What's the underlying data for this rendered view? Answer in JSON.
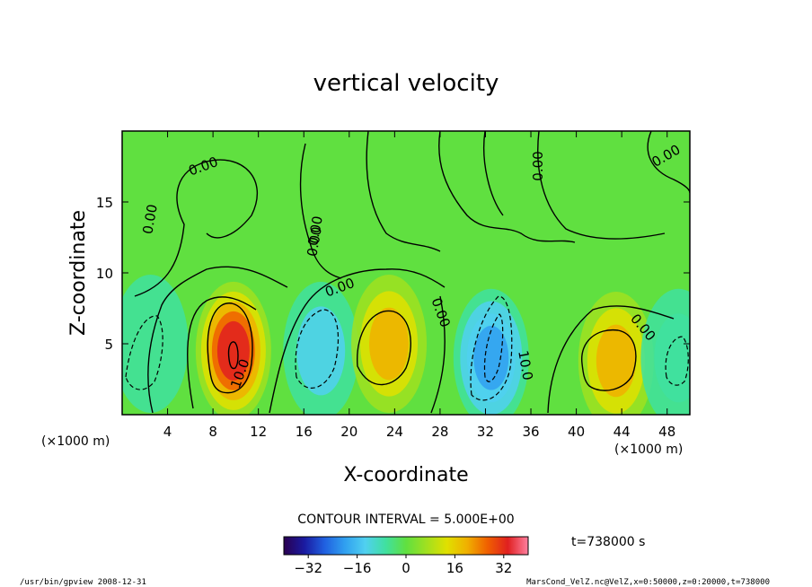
{
  "chart_data": {
    "type": "heatmap",
    "title": "vertical velocity",
    "xlabel": "X-coordinate",
    "ylabel": "Z-coordinate",
    "x_unit": "(×1000 m)",
    "y_unit": "(×1000 m)",
    "xlim": [
      0,
      50
    ],
    "ylim": [
      0,
      20
    ],
    "x_ticks": [
      4,
      8,
      12,
      16,
      20,
      24,
      28,
      32,
      36,
      40,
      44,
      48
    ],
    "y_ticks": [
      5,
      10,
      15
    ],
    "contour_interval": "CONTOUR INTERVAL = 5.000E+00",
    "time_label": "t=738000 s",
    "colorbar": {
      "range": [
        -40,
        40
      ],
      "ticks": [
        -32,
        -16,
        0,
        16,
        32
      ],
      "colors": [
        "#2a0050",
        "#1a1aa0",
        "#2060e0",
        "#30a0f0",
        "#50d0f0",
        "#40e0a0",
        "#60e040",
        "#a0e020",
        "#e0e000",
        "#f0b000",
        "#f06000",
        "#e02020",
        "#ff80a0"
      ]
    },
    "contour_labels": [
      "0.00",
      "0.00",
      "0.00",
      "0.00",
      "0.00",
      "0.00",
      "0.00",
      "0.00",
      "0.00",
      "10.0",
      "10.0"
    ],
    "features": [
      {
        "x": 9.8,
        "z": 4.5,
        "value": 30
      },
      {
        "x": 17.5,
        "z": 4.5,
        "value": -14
      },
      {
        "x": 23.5,
        "z": 5.0,
        "value": 17
      },
      {
        "x": 32.5,
        "z": 4.0,
        "value": -22
      },
      {
        "x": 43.5,
        "z": 3.8,
        "value": 18
      },
      {
        "x": 49.0,
        "z": 4.0,
        "value": -10
      },
      {
        "x": 2.5,
        "z": 5.0,
        "value": -5
      }
    ]
  },
  "footer": {
    "left": "/usr/bin/gpview  2008-12-31",
    "right": "MarsCond_VelZ.nc@VelZ,x=0:50000,z=0:20000,t=738000"
  }
}
